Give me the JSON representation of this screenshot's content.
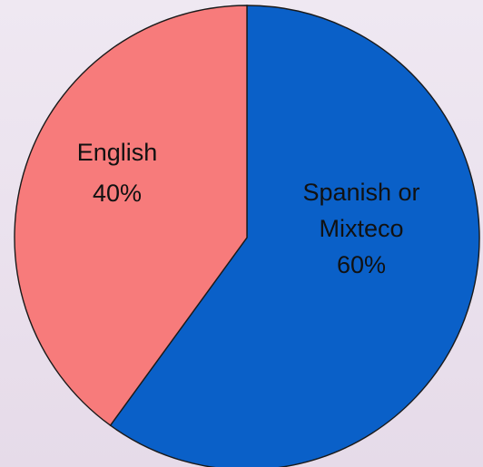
{
  "chart_data": {
    "type": "pie",
    "title": "",
    "legend": "none",
    "slices": [
      {
        "label_lines": [
          "Spanish or",
          "Mixteco"
        ],
        "value": 60,
        "value_label": "60%",
        "color": "#0a60c8"
      },
      {
        "label_lines": [
          "English"
        ],
        "value": 40,
        "value_label": "40%",
        "color": "#f77b7b"
      }
    ]
  }
}
